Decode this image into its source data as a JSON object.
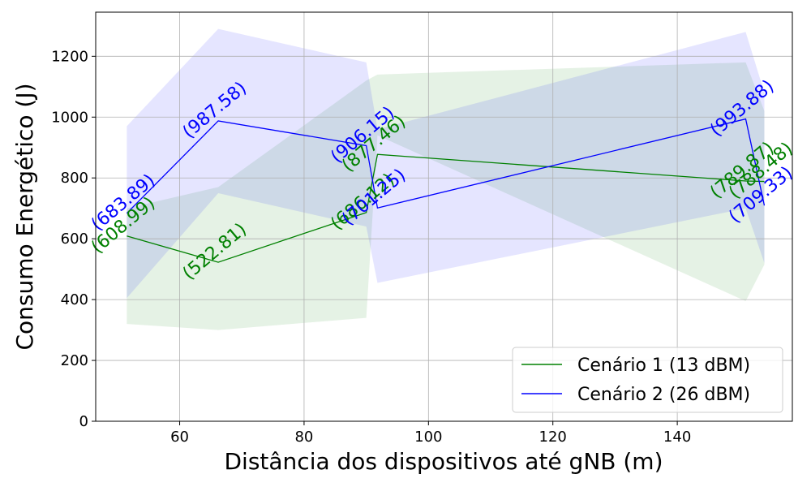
{
  "chart_data": {
    "type": "line",
    "xlabel": "Distância dos dispositivos até gNB (m)",
    "ylabel": "Consumo Energético (J)",
    "xlim": [
      46.5,
      158.5
    ],
    "ylim": [
      0,
      1345
    ],
    "xticks": [
      60,
      80,
      100,
      120,
      140
    ],
    "yticks": [
      0,
      200,
      400,
      600,
      800,
      1000,
      1200
    ],
    "grid": true,
    "legend_position": "lower-right",
    "series": [
      {
        "name": "Cenário 1 (13 dBM)",
        "color": "#008000",
        "x": [
          51.5,
          66.2,
          90.0,
          91.8,
          151.0,
          154.0
        ],
        "y": [
          608.99,
          522.81,
          686.12,
          877.46,
          789.87,
          788.48
        ],
        "labels": [
          "(608.99)",
          "(522.81)",
          "(686.12)",
          "(877.46)",
          "(789.87)",
          "(788.48)"
        ],
        "band_upper": [
          700,
          770,
          1120,
          1140,
          1180,
          1020
        ],
        "band_lower": [
          320,
          300,
          340,
          940,
          395,
          515
        ]
      },
      {
        "name": "Cenário 2 (26 dBM)",
        "color": "#0000ff",
        "x": [
          51.5,
          66.2,
          90.0,
          91.8,
          151.0,
          154.0
        ],
        "y": [
          683.89,
          987.58,
          906.15,
          701.25,
          993.88,
          709.33
        ],
        "labels": [
          "(683.89)",
          "(987.58)",
          "(906.15)",
          "(701.25)",
          "(993.88)",
          "(709.33)"
        ],
        "band_upper": [
          970,
          1290,
          1180,
          960,
          1280,
          1080
        ],
        "band_lower": [
          405,
          750,
          640,
          455,
          700,
          520
        ]
      }
    ]
  }
}
